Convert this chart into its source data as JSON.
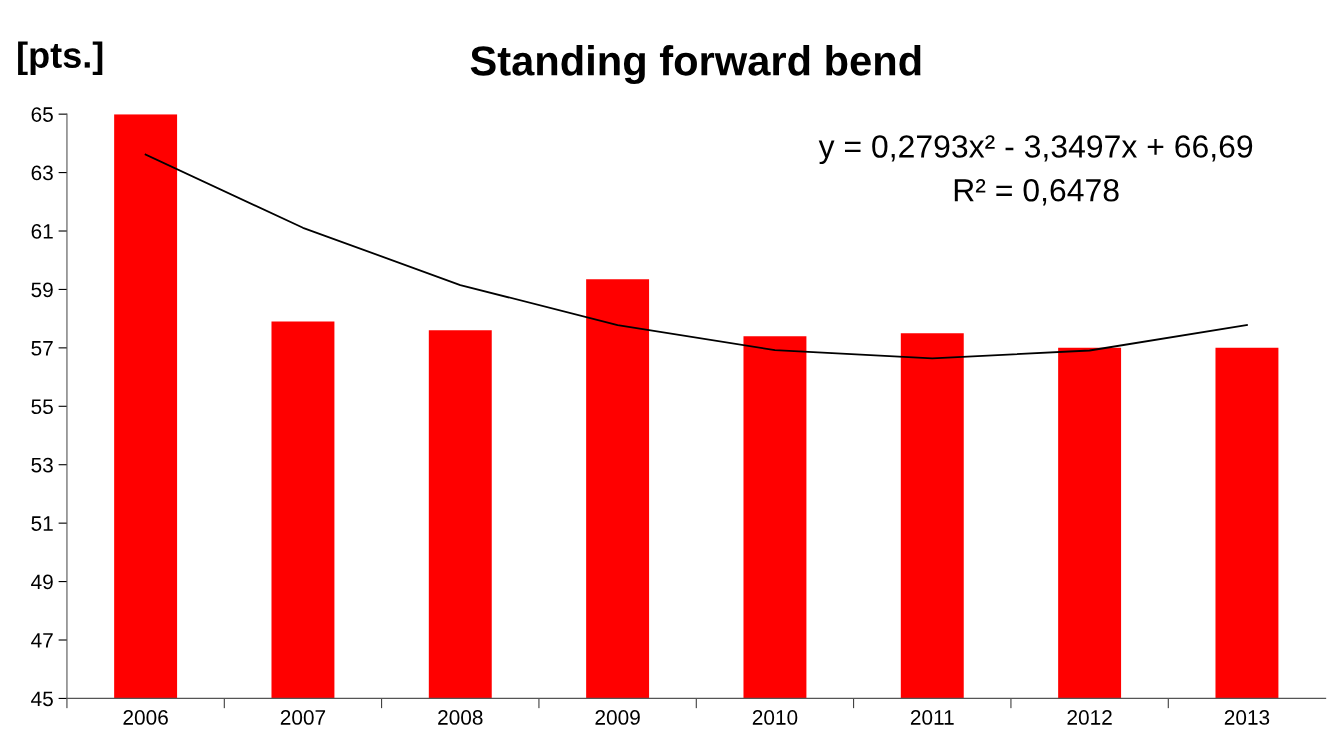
{
  "chart_data": {
    "type": "bar",
    "title": "Standing forward bend",
    "ylabel": "[pts.]",
    "categories": [
      "2006",
      "2007",
      "2008",
      "2009",
      "2010",
      "2011",
      "2012",
      "2013"
    ],
    "series": [
      {
        "color": "#ff0000",
        "values": [
          65,
          57.9,
          57.6,
          59.35,
          57.4,
          57.5,
          57.0,
          57.0
        ]
      },
      {
        "type": "line",
        "color": "#000000",
        "values": [
          63.62,
          61.11,
          59.15,
          57.78,
          56.92,
          56.64,
          56.91,
          57.78
        ]
      }
    ],
    "annotations": [
      "y = 0,2793x² - 3,3497x + 66,69",
      "R² = 0,6478"
    ],
    "ylim": [
      45,
      65
    ],
    "yticks": [
      45,
      47,
      49,
      51,
      53,
      55,
      57,
      59,
      61,
      63,
      65
    ],
    "grid": false,
    "legend": false
  }
}
